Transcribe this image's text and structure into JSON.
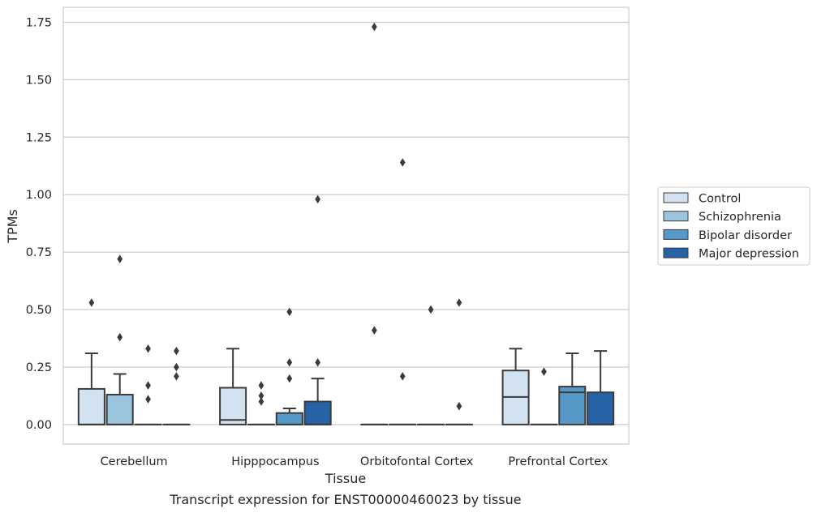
{
  "chart_data": {
    "type": "box",
    "xlabel": "Tissue",
    "ylabel": "TPMs",
    "caption": "Transcript expression for ENST00000460023 by tissue",
    "ylim": [
      -0.085,
      1.815
    ],
    "yticks": [
      0.0,
      0.25,
      0.5,
      0.75,
      1.0,
      1.25,
      1.5,
      1.75
    ],
    "ytick_labels": [
      "0.00",
      "0.25",
      "0.50",
      "0.75",
      "1.00",
      "1.25",
      "1.50",
      "1.75"
    ],
    "grid": "horizontal",
    "legend_position": "right",
    "categories": [
      "Cerebellum",
      "Hipppocampus",
      "Orbitofontal Cortex",
      "Prefrontal Cortex"
    ],
    "series": [
      {
        "name": "Control",
        "color": "#d2e2f1",
        "boxes": [
          {
            "q1": 0.0,
            "median": 0.0,
            "q3": 0.155,
            "whislo": 0.0,
            "whishi": 0.31,
            "fliers": [
              0.53
            ]
          },
          {
            "q1": 0.0,
            "median": 0.02,
            "q3": 0.16,
            "whislo": 0.0,
            "whishi": 0.33,
            "fliers": []
          },
          {
            "q1": 0.0,
            "median": 0.0,
            "q3": 0.0,
            "whislo": 0.0,
            "whishi": 0.0,
            "fliers": [
              1.73,
              0.41
            ]
          },
          {
            "q1": 0.0,
            "median": 0.12,
            "q3": 0.235,
            "whislo": 0.0,
            "whishi": 0.33,
            "fliers": []
          }
        ]
      },
      {
        "name": "Schizophrenia",
        "color": "#9bc4de",
        "boxes": [
          {
            "q1": 0.0,
            "median": 0.0,
            "q3": 0.13,
            "whislo": 0.0,
            "whishi": 0.22,
            "fliers": [
              0.72,
              0.38
            ]
          },
          {
            "q1": 0.0,
            "median": 0.0,
            "q3": 0.0,
            "whislo": 0.0,
            "whishi": 0.0,
            "fliers": [
              0.17,
              0.125,
              0.1
            ]
          },
          {
            "q1": 0.0,
            "median": 0.0,
            "q3": 0.0,
            "whislo": 0.0,
            "whishi": 0.0,
            "fliers": [
              1.14,
              0.21
            ]
          },
          {
            "q1": 0.0,
            "median": 0.0,
            "q3": 0.0,
            "whislo": 0.0,
            "whishi": 0.0,
            "fliers": [
              0.23
            ]
          }
        ]
      },
      {
        "name": "Bipolar disorder",
        "color": "#5499c8",
        "boxes": [
          {
            "q1": 0.0,
            "median": 0.0,
            "q3": 0.0,
            "whislo": 0.0,
            "whishi": 0.0,
            "fliers": [
              0.33,
              0.17,
              0.11
            ]
          },
          {
            "q1": 0.0,
            "median": 0.0,
            "q3": 0.05,
            "whislo": 0.0,
            "whishi": 0.07,
            "fliers": [
              0.49,
              0.27,
              0.2
            ]
          },
          {
            "q1": 0.0,
            "median": 0.0,
            "q3": 0.0,
            "whislo": 0.0,
            "whishi": 0.0,
            "fliers": [
              0.5
            ]
          },
          {
            "q1": 0.0,
            "median": 0.14,
            "q3": 0.165,
            "whislo": 0.0,
            "whishi": 0.31,
            "fliers": []
          }
        ]
      },
      {
        "name": "Major depression",
        "color": "#2563a6",
        "boxes": [
          {
            "q1": 0.0,
            "median": 0.0,
            "q3": 0.0,
            "whislo": 0.0,
            "whishi": 0.0,
            "fliers": [
              0.32,
              0.25,
              0.21
            ]
          },
          {
            "q1": 0.0,
            "median": 0.0,
            "q3": 0.1,
            "whislo": 0.0,
            "whishi": 0.2,
            "fliers": [
              0.98,
              0.27
            ]
          },
          {
            "q1": 0.0,
            "median": 0.0,
            "q3": 0.0,
            "whislo": 0.0,
            "whishi": 0.0,
            "fliers": [
              0.53,
              0.08
            ]
          },
          {
            "q1": 0.0,
            "median": 0.0,
            "q3": 0.14,
            "whislo": 0.0,
            "whishi": 0.32,
            "fliers": []
          }
        ]
      }
    ]
  },
  "colors": {
    "grid": "#cccccc",
    "spine": "#cccccc",
    "box_edge": "#3b3b3b",
    "text": "#262626"
  }
}
